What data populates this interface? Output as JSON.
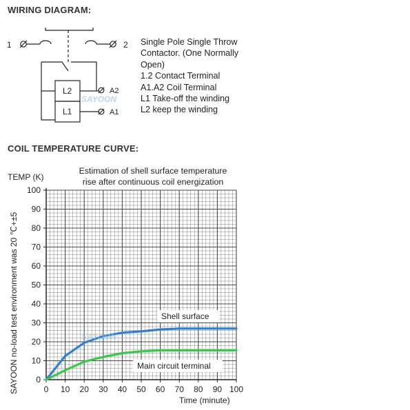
{
  "wiring": {
    "title": "WIRING DIAGRAM:",
    "terminal_1": "1",
    "terminal_2": "2",
    "coil_upper": "L2",
    "coil_lower": "L1",
    "label_a2": "A2",
    "label_a1": "A1",
    "watermark": "SAYOON",
    "description": [
      "Single Pole Single Throw",
      "Contactor. (One Normally",
      "Open)",
      "1.2 Contact Terminal",
      "A1.A2 Coil Terminal",
      "L1 Take-off the winding",
      "L2 keep the winding"
    ]
  },
  "coil": {
    "title": "COIL TEMPERATURE CURVE:",
    "side_note": "SAYOON no-load test environment was 20 ℃+±5",
    "watermark": "SAYOON"
  },
  "colors": {
    "grid": "#4a4a4a",
    "shell_line": "#2f7fd6",
    "terminal_line": "#33cc44"
  },
  "chart_data": {
    "type": "line",
    "title_lines": [
      "Estimation of shell surface temperature",
      "rise after continuous coil energization"
    ],
    "ylabel": "TEMP (K)",
    "xlabel": "Time (minute)",
    "x_ticks": [
      "0",
      "10",
      "20",
      "30",
      "40",
      "50",
      "60",
      "70",
      "80",
      "90",
      "100"
    ],
    "y_ticks": [
      "0",
      "10",
      "20",
      "30",
      "40",
      "50",
      "60",
      "70",
      "80",
      "90",
      "100"
    ],
    "xlim": [
      0,
      100
    ],
    "ylim": [
      0,
      100
    ],
    "grid": true,
    "series": [
      {
        "name": "Shell surface",
        "color": "#2f7fd6",
        "x": [
          0,
          10,
          20,
          30,
          40,
          50,
          60,
          70,
          80,
          90,
          100
        ],
        "y": [
          0,
          12.5,
          19.5,
          23,
          24.8,
          25.5,
          26.5,
          27,
          27,
          27,
          27
        ]
      },
      {
        "name": "Main circuit terminal",
        "color": "#33cc44",
        "x": [
          0,
          10,
          20,
          30,
          40,
          50,
          60,
          70,
          80,
          90,
          100
        ],
        "y": [
          0,
          5,
          9.5,
          12,
          14,
          15,
          15.5,
          15.5,
          15.5,
          15.5,
          15.5
        ]
      }
    ]
  }
}
